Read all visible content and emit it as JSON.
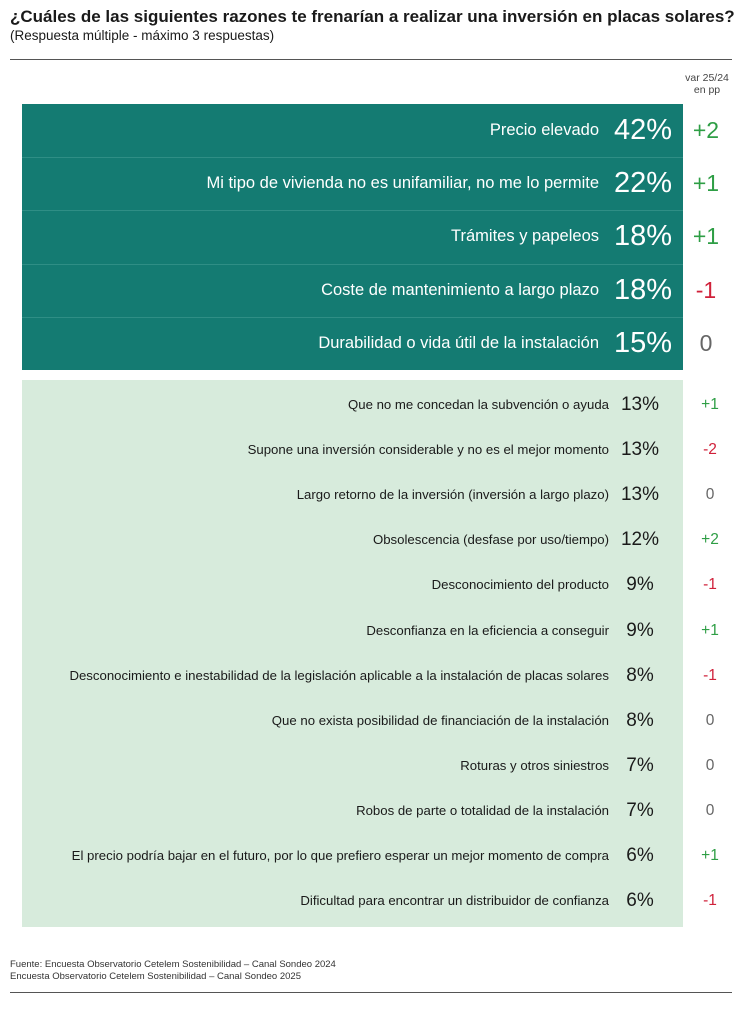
{
  "title": "¿Cuáles de las siguientes razones te frenarían a realizar una inversión en placas solares?",
  "subtitle": "(Respuesta múltiple - máximo 3 respuestas)",
  "var_header": [
    "var 25/24",
    "en pp"
  ],
  "colors": {
    "top_bg": "#147b72",
    "bottom_bg": "#d7ebdc",
    "positive": "#2e9e45",
    "negative": "#d0213a",
    "zero": "#666666"
  },
  "chart_data": {
    "type": "table",
    "columns": [
      "",
      "",
      "var 25/24 en pp"
    ],
    "top_rows": [
      {
        "label": "Precio elevado",
        "pct": "42%",
        "value": 42,
        "var": "+2"
      },
      {
        "label": "Mi tipo de vivienda no es unifamiliar, no me lo permite",
        "pct": "22%",
        "value": 22,
        "var": "+1"
      },
      {
        "label": "Trámites y papeleos",
        "pct": "18%",
        "value": 18,
        "var": "+1"
      },
      {
        "label": "Coste de mantenimiento a largo plazo",
        "pct": "18%",
        "value": 18,
        "var": "-1"
      },
      {
        "label": "Durabilidad o vida útil de la instalación",
        "pct": "15%",
        "value": 15,
        "var": "0"
      }
    ],
    "rows": [
      {
        "label": "Que no me concedan la subvención o ayuda",
        "pct": "13%",
        "value": 13,
        "var": "+1"
      },
      {
        "label": "Supone una inversión considerable y no es el mejor momento",
        "pct": "13%",
        "value": 13,
        "var": "-2"
      },
      {
        "label": "Largo retorno de la inversión (inversión a largo plazo)",
        "pct": "13%",
        "value": 13,
        "var": "0"
      },
      {
        "label": "Obsolescencia (desfase por uso/tiempo)",
        "pct": "12%",
        "value": 12,
        "var": "+2"
      },
      {
        "label": "Desconocimiento del producto",
        "pct": "9%",
        "value": 9,
        "var": "-1"
      },
      {
        "label": "Desconfianza en la eficiencia a conseguir",
        "pct": "9%",
        "value": 9,
        "var": "+1"
      },
      {
        "label": "Desconocimiento e inestabilidad de la legislación aplicable a la instalación de placas solares",
        "pct": "8%",
        "value": 8,
        "var": "-1"
      },
      {
        "label": "Que no exista posibilidad de financiación de la instalación",
        "pct": "8%",
        "value": 8,
        "var": "0"
      },
      {
        "label": "Roturas y otros siniestros",
        "pct": "7%",
        "value": 7,
        "var": "0"
      },
      {
        "label": "Robos de parte o totalidad de la instalación",
        "pct": "7%",
        "value": 7,
        "var": "0"
      },
      {
        "label": "El precio podría bajar en el futuro, por lo que prefiero esperar un mejor momento de compra",
        "pct": "6%",
        "value": 6,
        "var": "+1"
      },
      {
        "label": "Dificultad para encontrar un distribuidor de confianza",
        "pct": "6%",
        "value": 6,
        "var": "-1"
      }
    ]
  },
  "source": [
    "Fuente: Encuesta Observatorio Cetelem Sostenibilidad – Canal Sondeo 2024",
    "Encuesta Observatorio Cetelem Sostenibilidad – Canal Sondeo 2025"
  ]
}
